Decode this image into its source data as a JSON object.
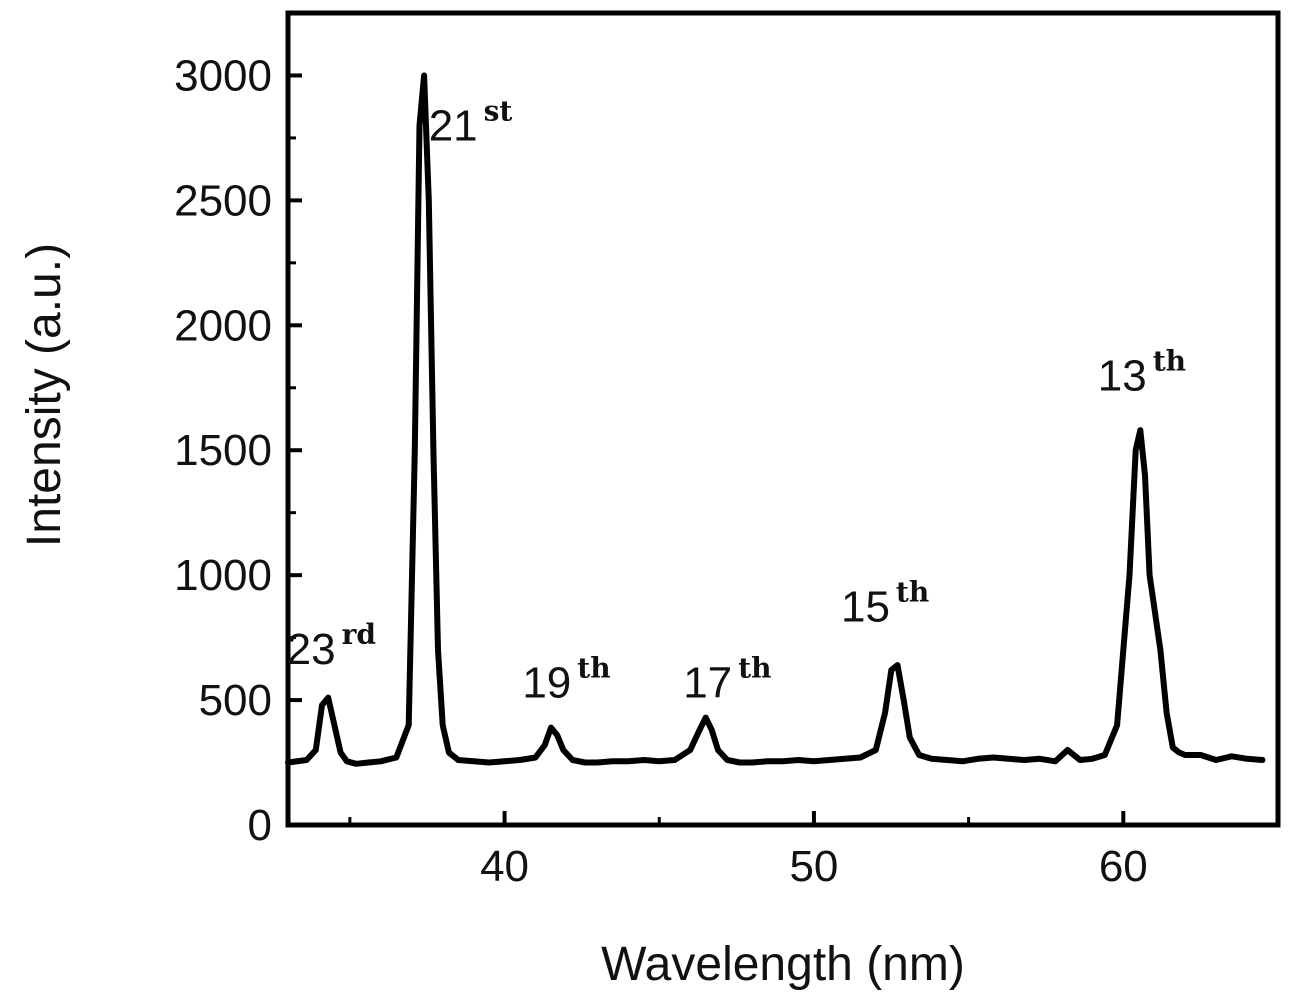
{
  "chart_data": {
    "type": "line",
    "title": "",
    "xlabel": "Wavelength (nm)",
    "ylabel": "Intensity (a.u.)",
    "xlim": [
      33,
      65
    ],
    "ylim": [
      0,
      3250
    ],
    "xticks": [
      40,
      50,
      60
    ],
    "yticks": [
      0,
      500,
      1000,
      1500,
      2000,
      2500,
      3000
    ],
    "grid": false,
    "legend": "none",
    "line_color": "#000000",
    "series": [
      {
        "x": [
          33.0,
          33.6,
          33.9,
          34.1,
          34.3,
          34.5,
          34.7,
          34.9,
          35.2,
          35.6,
          36.0,
          36.5,
          36.9,
          37.1,
          37.25,
          37.4,
          37.55,
          37.7,
          37.85,
          38.0,
          38.2,
          38.5,
          39.0,
          39.5,
          40.0,
          40.5,
          41.0,
          41.3,
          41.5,
          41.7,
          41.9,
          42.2,
          42.6,
          43.0,
          43.5,
          44.0,
          44.5,
          45.0,
          45.5,
          46.0,
          46.3,
          46.5,
          46.7,
          46.9,
          47.2,
          47.6,
          48.0,
          48.5,
          49.0,
          49.5,
          50.0,
          50.5,
          51.0,
          51.5,
          52.0,
          52.3,
          52.5,
          52.7,
          52.9,
          53.1,
          53.4,
          53.8,
          54.3,
          54.8,
          55.3,
          55.8,
          56.3,
          56.8,
          57.3,
          57.8,
          58.2,
          58.6,
          59.0,
          59.4,
          59.8,
          60.2,
          60.4,
          60.55,
          60.7,
          60.85,
          61.0,
          61.2,
          61.4,
          61.6,
          61.8,
          62.0,
          62.5,
          63.0,
          63.5,
          64.0,
          64.5
        ],
        "y": [
          250,
          260,
          300,
          480,
          510,
          400,
          290,
          255,
          245,
          250,
          255,
          270,
          400,
          1500,
          2800,
          3000,
          2500,
          1500,
          700,
          400,
          290,
          260,
          255,
          250,
          255,
          260,
          270,
          320,
          390,
          360,
          300,
          260,
          250,
          250,
          255,
          255,
          260,
          255,
          260,
          300,
          380,
          430,
          380,
          300,
          260,
          250,
          250,
          255,
          255,
          260,
          255,
          260,
          265,
          270,
          300,
          450,
          620,
          640,
          500,
          350,
          280,
          265,
          260,
          255,
          265,
          270,
          265,
          260,
          265,
          255,
          300,
          260,
          265,
          280,
          400,
          1000,
          1500,
          1580,
          1400,
          1000,
          870,
          700,
          450,
          310,
          290,
          280,
          280,
          260,
          275,
          265,
          260
        ]
      }
    ],
    "annotations": [
      {
        "num": "23",
        "sup": "rd",
        "x": 34.4,
        "y": 645
      },
      {
        "num": "21",
        "sup": "st",
        "x": 38.9,
        "y": 2740
      },
      {
        "num": "19",
        "sup": "th",
        "x": 42.0,
        "y": 510
      },
      {
        "num": "17",
        "sup": "th",
        "x": 47.2,
        "y": 510
      },
      {
        "num": "15",
        "sup": "th",
        "x": 52.3,
        "y": 815
      },
      {
        "num": "13",
        "sup": "th",
        "x": 60.6,
        "y": 1740
      }
    ]
  }
}
